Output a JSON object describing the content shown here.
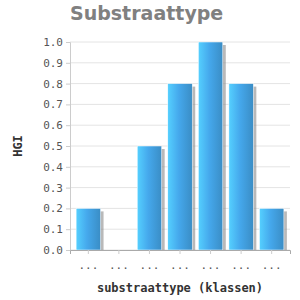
{
  "chart_data": {
    "type": "bar",
    "title": "Substraattype",
    "x_label": "substraattype (klassen)",
    "y_label": "HGI",
    "categories": [
      "...",
      "...",
      "...",
      "...",
      "...",
      "...",
      "..."
    ],
    "values": [
      0.2,
      0,
      0.5,
      0.8,
      1.0,
      0.8,
      0.2
    ],
    "color": "#45a8ec",
    "ylim": [
      0,
      1.0
    ],
    "yticks": [
      {
        "value": 0,
        "label": "0.0"
      },
      0.1,
      0.2,
      0.3,
      0.4,
      0.5,
      0.6,
      0.7,
      0.8,
      0.9,
      {
        "value": 1.0,
        "label": "1.0"
      }
    ],
    "grid": true
  }
}
